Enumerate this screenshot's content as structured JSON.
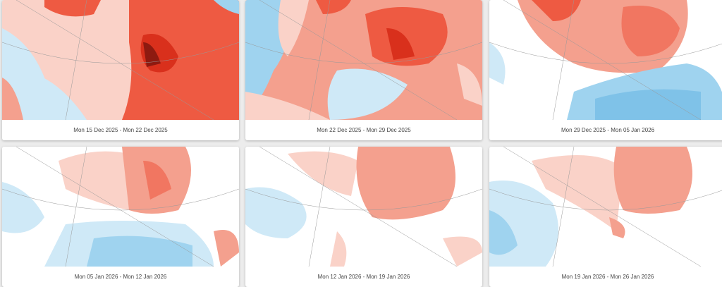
{
  "colors": {
    "strong_warm": "#d9301c",
    "warm": "#ee5a42",
    "mild_warm": "#f4a08e",
    "slight_warm": "#fad2c8",
    "slight_cold": "#cfe9f7",
    "cold": "#9fd3ef",
    "neutral": "#ffffff"
  },
  "maps": [
    {
      "caption": "Mon 15 Dec 2025 - Mon 22 Dec 2025",
      "anomaly": "strong-warm"
    },
    {
      "caption": "Mon 22 Dec 2025 - Mon 29 Dec 2025",
      "anomaly": "warm"
    },
    {
      "caption": "Mon 29 Dec 2025 - Mon 05 Jan 2026",
      "anomaly": "mixed"
    },
    {
      "caption": "Mon 05 Jan 2026 - Mon 12 Jan 2026",
      "anomaly": "mixed"
    },
    {
      "caption": "Mon 12 Jan 2026 - Mon 19 Jan 2026",
      "anomaly": "mild-warm"
    },
    {
      "caption": "Mon 19 Jan 2026 - Mon 26 Jan 2026",
      "anomaly": "mild-warm"
    }
  ]
}
